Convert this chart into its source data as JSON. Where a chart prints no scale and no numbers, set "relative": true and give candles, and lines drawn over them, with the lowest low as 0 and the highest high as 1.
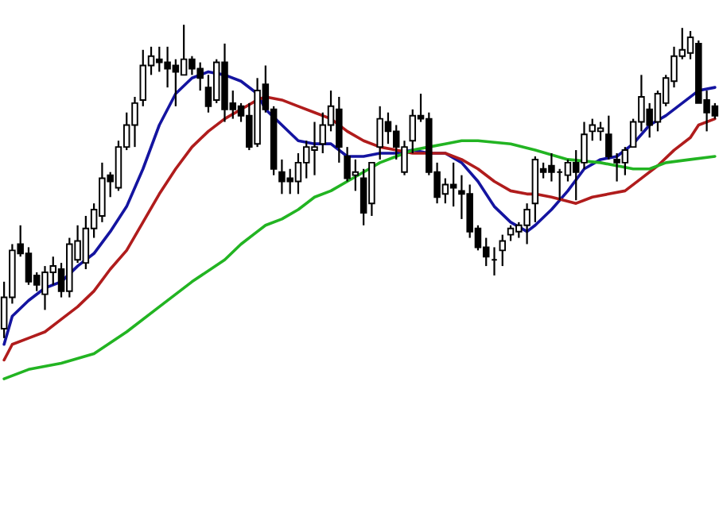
{
  "chart_data": {
    "type": "candlestick",
    "relative": true,
    "categories": [
      null,
      null,
      null,
      null,
      null,
      null,
      null,
      null,
      null,
      null,
      null,
      null,
      null,
      null,
      null,
      null,
      null,
      null,
      null,
      null,
      null,
      null,
      null,
      null,
      null,
      null,
      null,
      null,
      null,
      null,
      null,
      null,
      null,
      null,
      null,
      null,
      null,
      null,
      null,
      null,
      null,
      null,
      null,
      null,
      null,
      null,
      null,
      null,
      null,
      null,
      null,
      null,
      null,
      null,
      null,
      null,
      null,
      null,
      null,
      null,
      null,
      null,
      null,
      null,
      null,
      null,
      null,
      null,
      null,
      null,
      null,
      null,
      null,
      null,
      null,
      null,
      null,
      null,
      null,
      null,
      null,
      null,
      null,
      null,
      null,
      null,
      null,
      null
    ],
    "ohlc": [
      [
        0.03,
        0.18,
        0.0,
        0.13
      ],
      [
        0.13,
        0.3,
        0.11,
        0.28
      ],
      [
        0.3,
        0.36,
        0.26,
        0.27
      ],
      [
        0.27,
        0.29,
        0.17,
        0.18
      ],
      [
        0.2,
        0.21,
        0.15,
        0.17
      ],
      [
        0.14,
        0.23,
        0.09,
        0.21
      ],
      [
        0.21,
        0.26,
        0.17,
        0.23
      ],
      [
        0.22,
        0.24,
        0.13,
        0.15
      ],
      [
        0.15,
        0.32,
        0.13,
        0.3
      ],
      [
        0.25,
        0.36,
        0.24,
        0.31
      ],
      [
        0.24,
        0.39,
        0.22,
        0.35
      ],
      [
        0.35,
        0.43,
        0.32,
        0.41
      ],
      [
        0.39,
        0.56,
        0.37,
        0.51
      ],
      [
        0.52,
        0.53,
        0.45,
        0.5
      ],
      [
        0.48,
        0.63,
        0.47,
        0.61
      ],
      [
        0.61,
        0.72,
        0.6,
        0.68
      ],
      [
        0.68,
        0.77,
        0.61,
        0.75
      ],
      [
        0.76,
        0.92,
        0.74,
        0.87
      ],
      [
        0.87,
        0.93,
        0.84,
        0.9
      ],
      [
        0.89,
        0.93,
        0.85,
        0.88
      ],
      [
        0.88,
        0.93,
        0.8,
        0.86
      ],
      [
        0.87,
        0.89,
        0.74,
        0.85
      ],
      [
        0.84,
        1.0,
        0.84,
        0.89
      ],
      [
        0.89,
        0.9,
        0.84,
        0.86
      ],
      [
        0.86,
        0.88,
        0.79,
        0.83
      ],
      [
        0.8,
        0.84,
        0.72,
        0.74
      ],
      [
        0.76,
        0.89,
        0.75,
        0.88
      ],
      [
        0.88,
        0.94,
        0.69,
        0.73
      ],
      [
        0.75,
        0.79,
        0.7,
        0.73
      ],
      [
        0.74,
        0.75,
        0.69,
        0.71
      ],
      [
        0.71,
        0.75,
        0.6,
        0.61
      ],
      [
        0.62,
        0.83,
        0.61,
        0.79
      ],
      [
        0.81,
        0.87,
        0.72,
        0.73
      ],
      [
        0.73,
        0.74,
        0.52,
        0.54
      ],
      [
        0.53,
        0.57,
        0.46,
        0.5
      ],
      [
        0.51,
        0.54,
        0.46,
        0.5
      ],
      [
        0.5,
        0.59,
        0.46,
        0.56
      ],
      [
        0.56,
        0.63,
        0.51,
        0.61
      ],
      [
        0.6,
        0.69,
        0.52,
        0.61
      ],
      [
        0.62,
        0.72,
        0.59,
        0.68
      ],
      [
        0.68,
        0.79,
        0.66,
        0.74
      ],
      [
        0.73,
        0.77,
        0.56,
        0.61
      ],
      [
        0.58,
        0.61,
        0.5,
        0.51
      ],
      [
        0.52,
        0.57,
        0.47,
        0.53
      ],
      [
        0.51,
        0.54,
        0.36,
        0.4
      ],
      [
        0.43,
        0.56,
        0.39,
        0.56
      ],
      [
        0.61,
        0.74,
        0.57,
        0.7
      ],
      [
        0.69,
        0.72,
        0.62,
        0.66
      ],
      [
        0.66,
        0.68,
        0.57,
        0.61
      ],
      [
        0.53,
        0.63,
        0.52,
        0.61
      ],
      [
        0.63,
        0.73,
        0.59,
        0.71
      ],
      [
        0.71,
        0.78,
        0.69,
        0.7
      ],
      [
        0.7,
        0.72,
        0.52,
        0.53
      ],
      [
        0.53,
        0.56,
        0.43,
        0.45
      ],
      [
        0.46,
        0.51,
        0.43,
        0.49
      ],
      [
        0.49,
        0.56,
        0.42,
        0.48
      ],
      [
        0.47,
        0.52,
        0.38,
        0.46
      ],
      [
        0.46,
        0.49,
        0.32,
        0.34
      ],
      [
        0.35,
        0.36,
        0.28,
        0.29
      ],
      [
        0.29,
        0.32,
        0.23,
        0.26
      ],
      [
        0.25,
        0.29,
        0.2,
        0.25
      ],
      [
        0.28,
        0.33,
        0.23,
        0.31
      ],
      [
        0.33,
        0.36,
        0.31,
        0.35
      ],
      [
        0.34,
        0.37,
        0.32,
        0.36
      ],
      [
        0.36,
        0.43,
        0.3,
        0.41
      ],
      [
        0.43,
        0.58,
        0.37,
        0.57
      ],
      [
        0.54,
        0.56,
        0.51,
        0.53
      ],
      [
        0.55,
        0.59,
        0.5,
        0.53
      ],
      [
        0.53,
        0.54,
        0.44,
        0.53
      ],
      [
        0.52,
        0.57,
        0.5,
        0.56
      ],
      [
        0.56,
        0.6,
        0.44,
        0.53
      ],
      [
        0.56,
        0.69,
        0.54,
        0.65
      ],
      [
        0.66,
        0.7,
        0.63,
        0.68
      ],
      [
        0.66,
        0.69,
        0.63,
        0.67
      ],
      [
        0.65,
        0.71,
        0.57,
        0.58
      ],
      [
        0.57,
        0.59,
        0.5,
        0.56
      ],
      [
        0.56,
        0.61,
        0.52,
        0.6
      ],
      [
        0.61,
        0.7,
        0.61,
        0.69
      ],
      [
        0.69,
        0.84,
        0.66,
        0.77
      ],
      [
        0.73,
        0.75,
        0.64,
        0.68
      ],
      [
        0.69,
        0.79,
        0.66,
        0.78
      ],
      [
        0.75,
        0.84,
        0.74,
        0.83
      ],
      [
        0.82,
        0.93,
        0.8,
        0.9
      ],
      [
        0.9,
        0.99,
        0.89,
        0.92
      ],
      [
        0.91,
        0.98,
        0.89,
        0.96
      ],
      [
        0.94,
        0.95,
        0.75,
        0.75
      ],
      [
        0.76,
        0.79,
        0.66,
        0.72
      ],
      [
        0.74,
        0.75,
        0.7,
        0.71
      ]
    ],
    "series": [
      {
        "type": "line",
        "color": "#1414a0",
        "values": [
          -0.02,
          0.07,
          null,
          0.12,
          null,
          0.16,
          null,
          0.18,
          null,
          0.23,
          null,
          0.27,
          null,
          0.34,
          null,
          0.42,
          null,
          0.54,
          null,
          0.68,
          null,
          0.78,
          null,
          0.83,
          null,
          0.85,
          null,
          0.84,
          null,
          0.82,
          null,
          0.78,
          0.73,
          null,
          0.68,
          null,
          0.63,
          null,
          0.62,
          null,
          0.62,
          null,
          0.58,
          null,
          0.58,
          null,
          0.59,
          null,
          0.59,
          null,
          0.6,
          null,
          0.59,
          null,
          0.59,
          null,
          0.56,
          null,
          0.5,
          null,
          0.42,
          null,
          0.37,
          null,
          0.34,
          0.36,
          null,
          0.41,
          null,
          0.47,
          null,
          0.54,
          null,
          0.57,
          null,
          0.58,
          null,
          0.62,
          null,
          0.68,
          null,
          0.71,
          null,
          0.75,
          null,
          0.79,
          null,
          0.8
        ]
      },
      {
        "type": "line",
        "color": "#b01c1c",
        "values": [
          -0.07,
          -0.02,
          null,
          0.0,
          null,
          0.02,
          null,
          0.06,
          null,
          0.1,
          null,
          0.15,
          null,
          0.22,
          null,
          0.28,
          null,
          0.37,
          null,
          0.46,
          null,
          0.54,
          null,
          0.61,
          null,
          0.66,
          null,
          0.7,
          null,
          0.73,
          null,
          0.76,
          0.77,
          null,
          0.76,
          null,
          0.74,
          null,
          0.72,
          null,
          0.7,
          null,
          0.66,
          null,
          0.63,
          null,
          0.61,
          null,
          0.6,
          null,
          0.59,
          null,
          0.59,
          null,
          0.59,
          null,
          0.57,
          null,
          0.54,
          null,
          0.5,
          null,
          0.47,
          null,
          0.46,
          0.46,
          null,
          0.45,
          null,
          null,
          0.43,
          null,
          0.45,
          null,
          0.46,
          null,
          0.47,
          null,
          0.51,
          null,
          0.55,
          null,
          0.6,
          null,
          0.64,
          0.68,
          null,
          0.7
        ]
      },
      {
        "type": "line",
        "color": "#22b422",
        "values": [
          -0.13,
          null,
          null,
          -0.1,
          null,
          null,
          null,
          -0.08,
          null,
          null,
          null,
          -0.05,
          null,
          null,
          null,
          0.02,
          null,
          null,
          null,
          0.1,
          null,
          null,
          null,
          0.18,
          null,
          null,
          null,
          0.25,
          null,
          0.3,
          null,
          0.34,
          0.36,
          null,
          0.38,
          null,
          0.41,
          null,
          0.45,
          null,
          0.47,
          null,
          0.5,
          null,
          0.53,
          null,
          0.56,
          null,
          0.58,
          null,
          0.6,
          null,
          0.61,
          null,
          0.62,
          null,
          0.63,
          null,
          0.63,
          null,
          null,
          null,
          0.62,
          null,
          null,
          0.6,
          null,
          null,
          null,
          0.57,
          null,
          null,
          null,
          0.56,
          null,
          null,
          null,
          0.54,
          null,
          0.54,
          null,
          0.56,
          null,
          null,
          0.57,
          null,
          null,
          0.58
        ]
      }
    ]
  }
}
